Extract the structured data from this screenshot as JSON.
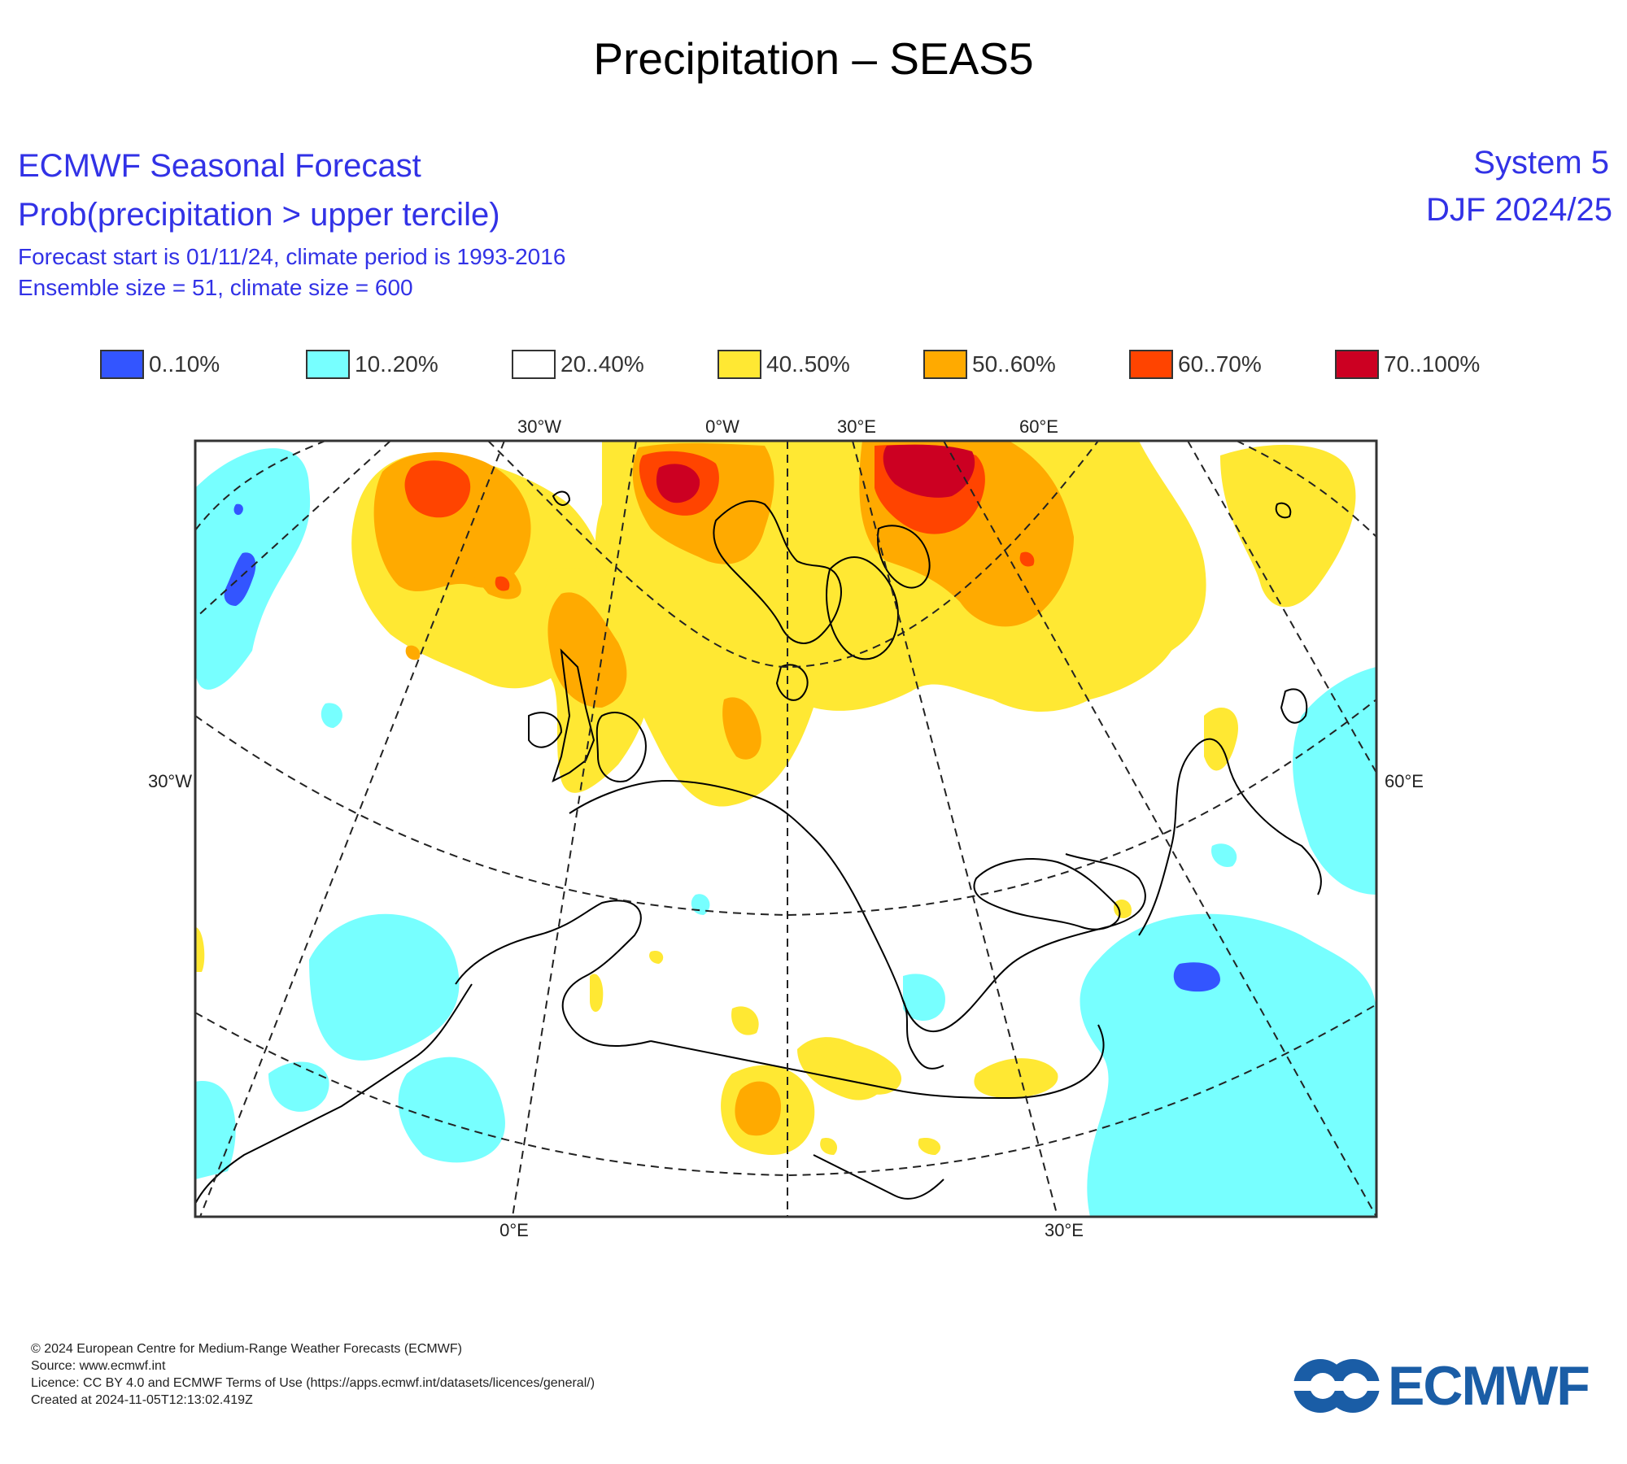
{
  "title": "Precipitation – SEAS5",
  "header": {
    "org_title": "ECMWF Seasonal Forecast",
    "prob_title": "Prob(precipitation > upper tercile)",
    "start_info": "Forecast start is 01/11/24, climate period is 1993-2016",
    "ensemble_info": "Ensemble size = 51, climate size = 600",
    "system": "System 5",
    "season": "DJF 2024/25"
  },
  "legend": [
    {
      "label": "0..10%",
      "color": "#3355ff"
    },
    {
      "label": "10..20%",
      "color": "#77ffff"
    },
    {
      "label": "20..40%",
      "color": "#ffffff"
    },
    {
      "label": "40..50%",
      "color": "#ffe833"
    },
    {
      "label": "50..60%",
      "color": "#ffaa00"
    },
    {
      "label": "60..70%",
      "color": "#ff4400"
    },
    {
      "label": "70..100%",
      "color": "#cc0022"
    }
  ],
  "map": {
    "top_ticks": [
      "30°W",
      "0°W",
      "30°E",
      "60°E"
    ],
    "bottom_ticks": [
      "0°E",
      "30°E"
    ],
    "left_tick": "30°W",
    "right_tick": "60°E"
  },
  "footer": {
    "copyright": "© 2024 European Centre for Medium-Range Weather Forecasts (ECMWF)",
    "source": "Source: www.ecmwf.int",
    "licence": "Licence: CC BY 4.0 and ECMWF Terms of Use (https://apps.ecmwf.int/datasets/licences/general/)",
    "created": "Created at 2024-11-05T12:13:02.419Z"
  },
  "logo": {
    "text": "ECMWF",
    "color": "#1a5da6",
    "icon": "ecmwf-logo-icon"
  }
}
